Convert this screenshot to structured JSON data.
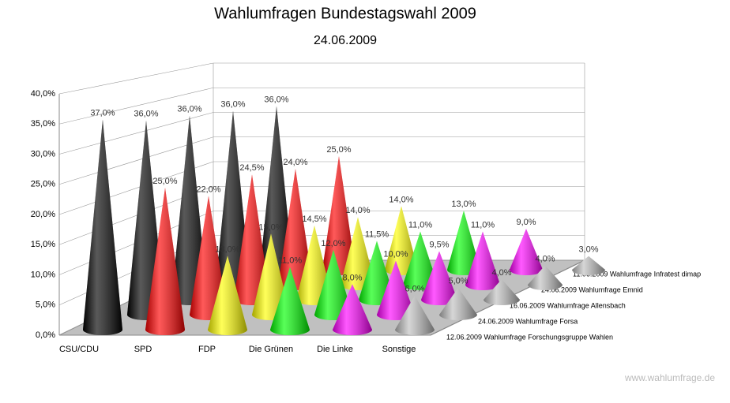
{
  "chart_data": {
    "type": "cone3d",
    "title": "Wahlumfragen Bundestagswahl 2009",
    "subtitle": "24.06.2009",
    "categories": [
      "CSU/CDU",
      "SPD",
      "FDP",
      "Die Grünen",
      "Die Linke",
      "Sonstige"
    ],
    "colors": [
      "#000000",
      "#ff0000",
      "#ffff00",
      "#00ff00",
      "#ff00ff",
      "#c0c0c0"
    ],
    "series": [
      {
        "name": "12.06.2009 Wahlumfrage Forschungsgruppe Wahlen",
        "values": [
          37,
          25,
          13,
          11,
          8,
          6
        ],
        "value_labels": [
          "37,0%",
          "25,0%",
          "13,0%",
          "11,0%",
          "8,0%",
          "6,0%"
        ]
      },
      {
        "name": "24.06.2009 Wahlumfrage Forsa",
        "values": [
          36,
          22,
          15,
          12,
          10,
          5
        ],
        "value_labels": [
          "36,0%",
          "22,0%",
          "15,0%",
          "12,0%",
          "10,0%",
          "5,0%"
        ]
      },
      {
        "name": "16.06.2009 Wahlumfrage Allensbach",
        "values": [
          36,
          24.5,
          14.5,
          11.5,
          9.5,
          4
        ],
        "value_labels": [
          "36,0%",
          "24,5%",
          "14,5%",
          "11,5%",
          "9,5%",
          "4,0%"
        ]
      },
      {
        "name": "24.06.2009 Wahlumfrage Emnid",
        "values": [
          36,
          24,
          14,
          11,
          11,
          4
        ],
        "value_labels": [
          "36,0%",
          "24,0%",
          "14,0%",
          "11,0%",
          "11,0%",
          "4,0%"
        ]
      },
      {
        "name": "11.06.2009 Wahlumfrage Infratest dimap",
        "values": [
          36,
          25,
          14,
          13,
          9,
          3
        ],
        "value_labels": [
          "36,0%",
          "25,0%",
          "14,0%",
          "13,0%",
          "9,0%",
          "3,0%"
        ]
      }
    ],
    "ylim": [
      0,
      40
    ],
    "yticks": [
      {
        "value": 0,
        "label": "0,0%"
      },
      {
        "value": 5,
        "label": "5,0%"
      },
      {
        "value": 10,
        "label": "10,0%"
      },
      {
        "value": 15,
        "label": "15,0%"
      },
      {
        "value": 20,
        "label": "20,0%"
      },
      {
        "value": 25,
        "label": "25,0%"
      },
      {
        "value": 30,
        "label": "30,0%"
      },
      {
        "value": 35,
        "label": "35,0%"
      },
      {
        "value": 40,
        "label": "40,0%"
      }
    ],
    "grid": true,
    "source": "www.wahlumfrage.de"
  }
}
